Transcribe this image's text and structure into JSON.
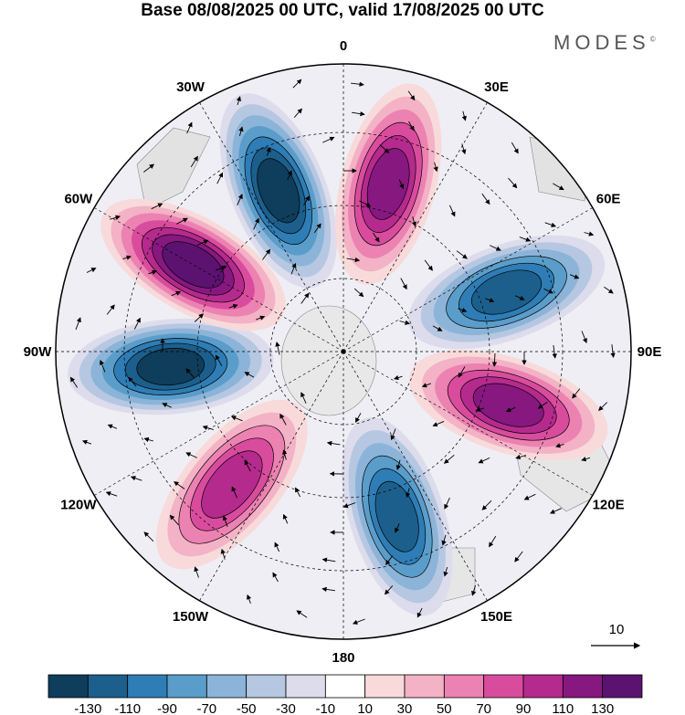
{
  "title": "Base 08/08/2025 00 UTC, valid 17/08/2025 00 UTC",
  "logo": "MODES",
  "logo_mark": "©",
  "map": {
    "projection": "south-polar-stereographic",
    "longitude_labels": [
      {
        "text": "0",
        "lon": 0
      },
      {
        "text": "30E",
        "lon": 30
      },
      {
        "text": "60E",
        "lon": 60
      },
      {
        "text": "90E",
        "lon": 90
      },
      {
        "text": "120E",
        "lon": 120
      },
      {
        "text": "150E",
        "lon": 150
      },
      {
        "text": "180",
        "lon": 180
      },
      {
        "text": "150W",
        "lon": -150
      },
      {
        "text": "120W",
        "lon": -120
      },
      {
        "text": "90W",
        "lon": -90
      },
      {
        "text": "60W",
        "lon": -60
      },
      {
        "text": "30W",
        "lon": -30
      }
    ],
    "anomaly_centers": [
      {
        "sign": "negative",
        "value": -140,
        "lon": -22
      },
      {
        "sign": "positive",
        "value": 120,
        "lon": 15
      },
      {
        "sign": "negative",
        "value": -110,
        "lon": 70
      },
      {
        "sign": "positive",
        "value": 110,
        "lon": 108
      },
      {
        "sign": "negative",
        "value": -125,
        "lon": 162
      },
      {
        "sign": "positive",
        "value": 100,
        "lon": -140
      },
      {
        "sign": "negative",
        "value": -140,
        "lon": -95
      },
      {
        "sign": "positive",
        "value": 130,
        "lon": -60
      }
    ],
    "reference_vector": {
      "label": "10"
    }
  },
  "colorbar": {
    "colors": [
      "#0f3d5c",
      "#1c5f8c",
      "#2f7db6",
      "#5a9dca",
      "#8bb4d8",
      "#b6c7e1",
      "#dcdcec",
      "#ffffff",
      "#f8dada",
      "#f3b2c6",
      "#ec82b1",
      "#d94c9d",
      "#b52a8d",
      "#86187f",
      "#5c1270"
    ],
    "ticks": [
      "-130",
      "-110",
      "-90",
      "-70",
      "-50",
      "-30",
      "-10",
      "10",
      "30",
      "50",
      "70",
      "90",
      "110",
      "130"
    ]
  }
}
